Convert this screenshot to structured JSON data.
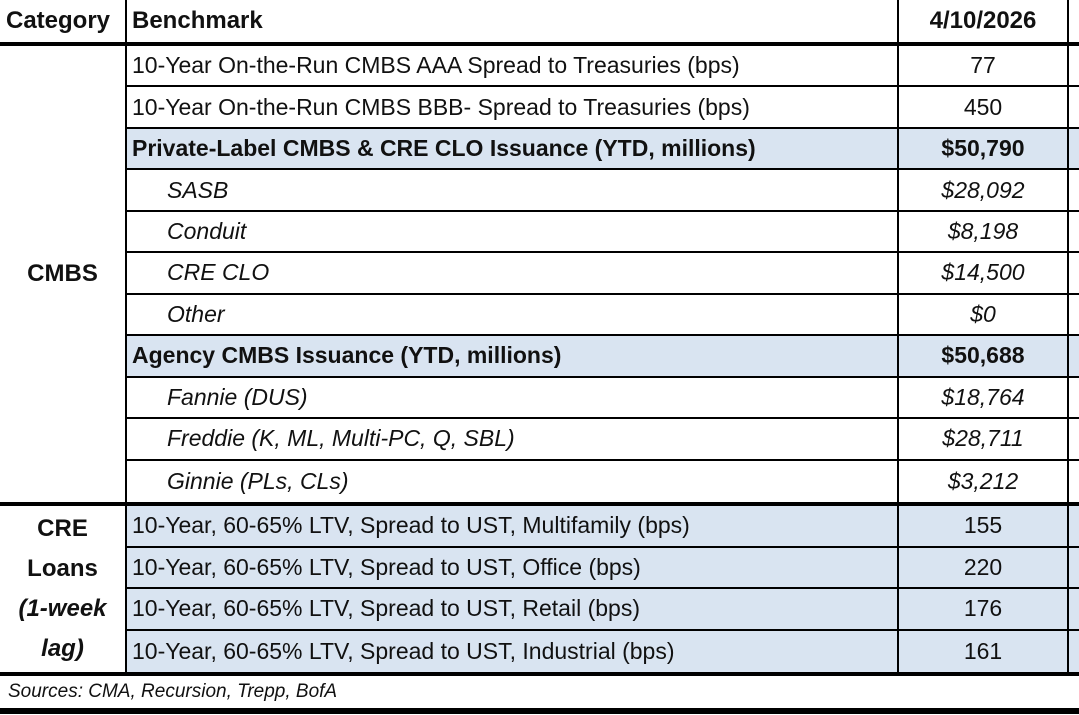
{
  "header": {
    "category": "Category",
    "benchmark": "Benchmark",
    "date": "4/10/2026"
  },
  "sections": [
    {
      "name": "cmbs",
      "category_lines": [
        {
          "text": "CMBS",
          "italic": false
        }
      ],
      "rows": [
        {
          "benchmark": "10-Year On-the-Run CMBS AAA Spread to Treasuries (bps)",
          "value": "77",
          "style": "normal"
        },
        {
          "benchmark": "10-Year On-the-Run CMBS BBB- Spread to Treasuries (bps)",
          "value": "450",
          "style": "normal"
        },
        {
          "benchmark": "Private-Label CMBS & CRE CLO Issuance (YTD, millions)",
          "value": "$50,790",
          "style": "section"
        },
        {
          "benchmark": "SASB",
          "value": "$28,092",
          "style": "sub"
        },
        {
          "benchmark": "Conduit",
          "value": "$8,198",
          "style": "sub"
        },
        {
          "benchmark": "CRE CLO",
          "value": "$14,500",
          "style": "sub"
        },
        {
          "benchmark": "Other",
          "value": "$0",
          "style": "sub"
        },
        {
          "benchmark": "Agency CMBS Issuance (YTD, millions)",
          "value": "$50,688",
          "style": "section"
        },
        {
          "benchmark": "Fannie (DUS)",
          "value": "$18,764",
          "style": "sub"
        },
        {
          "benchmark": "Freddie (K, ML, Multi-PC, Q, SBL)",
          "value": "$28,711",
          "style": "sub"
        },
        {
          "benchmark": "Ginnie (PLs, CLs)",
          "value": "$3,212",
          "style": "sub"
        }
      ]
    },
    {
      "name": "cre-loans",
      "category_lines": [
        {
          "text": "CRE",
          "italic": false
        },
        {
          "text": "Loans",
          "italic": false
        },
        {
          "text": "(1-week",
          "italic": true
        },
        {
          "text": "lag)",
          "italic": true
        }
      ],
      "rows": [
        {
          "benchmark": "10-Year, 60-65% LTV, Spread to UST, Multifamily (bps)",
          "value": "155",
          "style": "cre"
        },
        {
          "benchmark": "10-Year, 60-65% LTV, Spread to UST, Office (bps)",
          "value": "220",
          "style": "cre"
        },
        {
          "benchmark": "10-Year, 60-65% LTV, Spread to UST, Retail (bps)",
          "value": "176",
          "style": "cre"
        },
        {
          "benchmark": "10-Year, 60-65% LTV, Spread to UST, Industrial (bps)",
          "value": "161",
          "style": "cre"
        }
      ]
    }
  ],
  "footer": {
    "sources": "Sources: CMA, Recursion, Trepp, BofA"
  },
  "colors": {
    "highlight": "#d9e4f1",
    "border": "#000000",
    "text": "#111111"
  }
}
